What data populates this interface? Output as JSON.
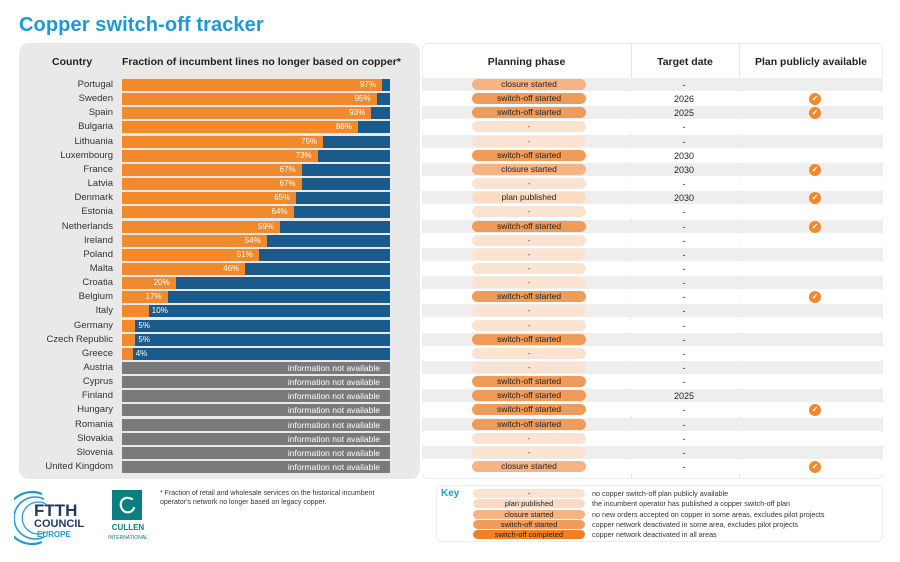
{
  "title": "Copper switch-off tracker",
  "headers": {
    "country": "Country",
    "fraction": "Fraction of incumbent lines no longer based on copper*",
    "phase": "Planning phase",
    "date": "Target date",
    "public": "Plan publicly available"
  },
  "colors": {
    "bar_orange": "#f08a2c",
    "bar_blue": "#1a5b8c",
    "bar_grey": "#7a7a7a",
    "title_blue": "#1c9ad6"
  },
  "chart_data": {
    "type": "bar",
    "orientation": "horizontal",
    "unit": "%",
    "xlim": [
      0,
      100
    ],
    "categories": [
      "Portugal",
      "Sweden",
      "Spain",
      "Bulgaria",
      "Lithuania",
      "Luxembourg",
      "France",
      "Latvia",
      "Denmark",
      "Estonia",
      "Netherlands",
      "Ireland",
      "Poland",
      "Malta",
      "Croatia",
      "Belgium",
      "Italy",
      "Germany",
      "Czech Republic",
      "Greece",
      "Austria",
      "Cyprus",
      "Finland",
      "Hungary",
      "Romania",
      "Slovakia",
      "Slovenia",
      "United Kingdom"
    ],
    "values": [
      97,
      95,
      93,
      88,
      75,
      73,
      67,
      67,
      65,
      64,
      59,
      54,
      51,
      46,
      20,
      17,
      10,
      5,
      5,
      4,
      null,
      null,
      null,
      null,
      null,
      null,
      null,
      null
    ],
    "labels": [
      "97%",
      "95%",
      "93%",
      "88%",
      "75%",
      "73%",
      "67%",
      "67%",
      "65%",
      "64%",
      "59%",
      "54%",
      "51%",
      "46%",
      "20%",
      "17%",
      "10%",
      "5%",
      "5%",
      "4%",
      "information not available",
      "information not available",
      "information not available",
      "information not available",
      "information not available",
      "information not available",
      "information not available",
      "information not available"
    ]
  },
  "rows": [
    {
      "country": "Portugal",
      "phase": "closure started",
      "phase_key": "closure",
      "date": "-",
      "public": false
    },
    {
      "country": "Sweden",
      "phase": "switch-off started",
      "phase_key": "started",
      "date": "2026",
      "public": true
    },
    {
      "country": "Spain",
      "phase": "switch-off started",
      "phase_key": "started",
      "date": "2025",
      "public": true
    },
    {
      "country": "Bulgaria",
      "phase": "-",
      "phase_key": "none",
      "date": "-",
      "public": false
    },
    {
      "country": "Lithuania",
      "phase": "-",
      "phase_key": "none",
      "date": "-",
      "public": false
    },
    {
      "country": "Luxembourg",
      "phase": "switch-off started",
      "phase_key": "started",
      "date": "2030",
      "public": false
    },
    {
      "country": "France",
      "phase": "closure started",
      "phase_key": "closure",
      "date": "2030",
      "public": true
    },
    {
      "country": "Latvia",
      "phase": "-",
      "phase_key": "none",
      "date": "-",
      "public": false
    },
    {
      "country": "Denmark",
      "phase": "plan published",
      "phase_key": "plan",
      "date": "2030",
      "public": true
    },
    {
      "country": "Estonia",
      "phase": "-",
      "phase_key": "none",
      "date": "-",
      "public": false
    },
    {
      "country": "Netherlands",
      "phase": "switch-off started",
      "phase_key": "started",
      "date": "-",
      "public": true
    },
    {
      "country": "Ireland",
      "phase": "-",
      "phase_key": "none",
      "date": "-",
      "public": false
    },
    {
      "country": "Poland",
      "phase": "-",
      "phase_key": "none",
      "date": "-",
      "public": false
    },
    {
      "country": "Malta",
      "phase": "-",
      "phase_key": "none",
      "date": "-",
      "public": false
    },
    {
      "country": "Croatia",
      "phase": "-",
      "phase_key": "none",
      "date": "-",
      "public": false
    },
    {
      "country": "Belgium",
      "phase": "switch-off started",
      "phase_key": "started",
      "date": "-",
      "public": true
    },
    {
      "country": "Italy",
      "phase": "-",
      "phase_key": "none",
      "date": "-",
      "public": false
    },
    {
      "country": "Germany",
      "phase": "-",
      "phase_key": "none",
      "date": "-",
      "public": false
    },
    {
      "country": "Czech Republic",
      "phase": "switch-off started",
      "phase_key": "started",
      "date": "-",
      "public": false
    },
    {
      "country": "Greece",
      "phase": "-",
      "phase_key": "none",
      "date": "-",
      "public": false
    },
    {
      "country": "Austria",
      "phase": "-",
      "phase_key": "none",
      "date": "-",
      "public": false
    },
    {
      "country": "Cyprus",
      "phase": "switch-off started",
      "phase_key": "started",
      "date": "-",
      "public": false
    },
    {
      "country": "Finland",
      "phase": "switch-off started",
      "phase_key": "started",
      "date": "2025",
      "public": false
    },
    {
      "country": "Hungary",
      "phase": "switch-off started",
      "phase_key": "started",
      "date": "-",
      "public": true
    },
    {
      "country": "Romania",
      "phase": "switch-off started",
      "phase_key": "started",
      "date": "-",
      "public": false
    },
    {
      "country": "Slovakia",
      "phase": "-",
      "phase_key": "none",
      "date": "-",
      "public": false
    },
    {
      "country": "Slovenia",
      "phase": "-",
      "phase_key": "none",
      "date": "-",
      "public": false
    },
    {
      "country": "United Kingdom",
      "phase": "closure started",
      "phase_key": "closure",
      "date": "-",
      "public": true
    }
  ],
  "footnote": "* Fraction of retail and wholesale services on the historical incumbent operator's network no longer based on legacy copper.",
  "logos": {
    "ftth_line1": "FTTH",
    "ftth_line2": "COUNCIL",
    "ftth_line3": "EUROPE",
    "cullen_name": "CULLEN",
    "cullen_sub": "INTERNATIONAL"
  },
  "key": {
    "title": "Key",
    "items": [
      {
        "label": "-",
        "phase_key": "none",
        "desc": "no copper switch-off plan publicly available"
      },
      {
        "label": "plan published",
        "phase_key": "plan",
        "desc": "the incumbent operator has published a copper switch-off plan"
      },
      {
        "label": "closure started",
        "phase_key": "closure",
        "desc": "no new orders accepted on copper in some areas, excludes pilot projects"
      },
      {
        "label": "switch-off started",
        "phase_key": "started",
        "desc": "copper network deactivated in some area, excludes pilot projects"
      },
      {
        "label": "switch-off completed",
        "phase_key": "completed",
        "desc": "copper network deactivated in all areas"
      }
    ]
  }
}
